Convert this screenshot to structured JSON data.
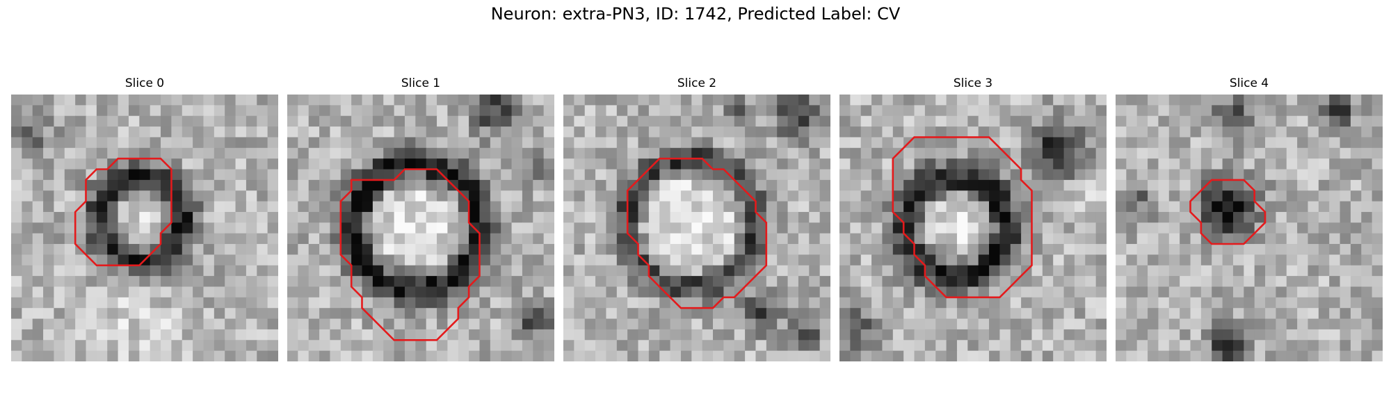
{
  "figure": {
    "title": "Neuron: extra-PN3, ID: 1742, Predicted Label: CV"
  },
  "colors": {
    "contour": "#e41a1c",
    "colormap": "gray"
  },
  "panels": [
    {
      "title": "Slice 0",
      "seed": 11,
      "ring": {
        "cx": 12.2,
        "cy": 11.6,
        "r": 3.8,
        "width": 1.6,
        "strength": 0.55,
        "inner_brightness": 0.12
      },
      "blobs": [
        {
          "cx": 2,
          "cy": 4,
          "r": 2.0,
          "s": -0.25
        },
        {
          "cx": 21.5,
          "cy": 27.5,
          "r": 1.8,
          "s": -0.45
        },
        {
          "cx": 12,
          "cy": 21,
          "r": 4.0,
          "s": 0.12
        }
      ],
      "contour_label": "cell-mask",
      "contour": [
        [
          11,
          6
        ],
        [
          14,
          6
        ],
        [
          15,
          7
        ],
        [
          15,
          12
        ],
        [
          14,
          13
        ],
        [
          14,
          14
        ],
        [
          13,
          15
        ],
        [
          12,
          16
        ],
        [
          8,
          16
        ],
        [
          7,
          15
        ],
        [
          6,
          14
        ],
        [
          6,
          11
        ],
        [
          7,
          10
        ],
        [
          7,
          8
        ],
        [
          8,
          7
        ],
        [
          9,
          7
        ],
        [
          10,
          6
        ]
      ]
    },
    {
      "title": "Slice 1",
      "seed": 23,
      "ring": {
        "cx": 12.1,
        "cy": 12.4,
        "r": 5.8,
        "width": 1.7,
        "strength": 0.6,
        "inner_brightness": 0.18
      },
      "blobs": [
        {
          "cx": 19.5,
          "cy": 1.5,
          "r": 2.2,
          "s": -0.45
        },
        {
          "cx": 23,
          "cy": 21,
          "r": 1.6,
          "s": -0.5
        },
        {
          "cx": 23,
          "cy": 7,
          "r": 1.5,
          "s": -0.25
        }
      ],
      "contour_label": "cell-mask",
      "contour": [
        [
          11,
          7
        ],
        [
          13,
          7
        ],
        [
          14,
          7
        ],
        [
          15,
          8
        ],
        [
          16,
          9
        ],
        [
          17,
          10
        ],
        [
          17,
          12
        ],
        [
          18,
          13
        ],
        [
          18,
          17
        ],
        [
          17,
          18
        ],
        [
          17,
          19
        ],
        [
          16,
          20
        ],
        [
          16,
          21
        ],
        [
          15,
          22
        ],
        [
          14,
          23
        ],
        [
          11,
          23
        ],
        [
          10,
          23
        ],
        [
          9,
          22
        ],
        [
          8,
          21
        ],
        [
          7,
          20
        ],
        [
          7,
          19
        ],
        [
          6,
          18
        ],
        [
          6,
          16
        ],
        [
          5,
          15
        ],
        [
          5,
          10
        ],
        [
          6,
          9
        ],
        [
          6,
          8
        ],
        [
          7,
          8
        ],
        [
          10,
          8
        ]
      ]
    },
    {
      "title": "Slice 2",
      "seed": 37,
      "ring": {
        "cx": 12.0,
        "cy": 12.0,
        "r": 5.9,
        "width": 1.5,
        "strength": 0.45,
        "inner_brightness": 0.16
      },
      "blobs": [
        {
          "cx": 22,
          "cy": 2,
          "r": 2.2,
          "s": -0.5
        },
        {
          "cx": 18.5,
          "cy": 20.5,
          "r": 1.6,
          "s": -0.55
        },
        {
          "cx": 22.5,
          "cy": 22.5,
          "r": 1.5,
          "s": -0.4
        },
        {
          "cx": 16,
          "cy": 1,
          "r": 1.4,
          "s": -0.3
        }
      ],
      "contour_label": "cell-mask",
      "contour": [
        [
          9,
          6
        ],
        [
          13,
          6
        ],
        [
          14,
          7
        ],
        [
          15,
          7
        ],
        [
          16,
          8
        ],
        [
          17,
          9
        ],
        [
          18,
          10
        ],
        [
          18,
          11
        ],
        [
          19,
          12
        ],
        [
          19,
          16
        ],
        [
          18,
          17
        ],
        [
          17,
          18
        ],
        [
          16,
          19
        ],
        [
          15,
          19
        ],
        [
          14,
          20
        ],
        [
          11,
          20
        ],
        [
          10,
          19
        ],
        [
          9,
          18
        ],
        [
          8,
          17
        ],
        [
          8,
          16
        ],
        [
          7,
          15
        ],
        [
          7,
          14
        ],
        [
          6,
          13
        ],
        [
          6,
          9
        ],
        [
          7,
          8
        ],
        [
          8,
          7
        ]
      ]
    },
    {
      "title": "Slice 3",
      "seed": 41,
      "ring": {
        "cx": 10.9,
        "cy": 12.4,
        "r": 4.6,
        "width": 1.8,
        "strength": 0.55,
        "inner_brightness": 0.16
      },
      "blobs": [
        {
          "cx": 20.5,
          "cy": 5,
          "r": 2.6,
          "s": -0.55
        },
        {
          "cx": 1.5,
          "cy": 22,
          "r": 2.2,
          "s": -0.35
        },
        {
          "cx": 23,
          "cy": 10,
          "r": 1.6,
          "s": 0.15
        }
      ],
      "contour_label": "cell-mask",
      "contour": [
        [
          8,
          4
        ],
        [
          14,
          4
        ],
        [
          15,
          5
        ],
        [
          16,
          6
        ],
        [
          17,
          7
        ],
        [
          17,
          8
        ],
        [
          18,
          9
        ],
        [
          18,
          16
        ],
        [
          17,
          17
        ],
        [
          16,
          18
        ],
        [
          15,
          19
        ],
        [
          10,
          19
        ],
        [
          9,
          18
        ],
        [
          8,
          17
        ],
        [
          8,
          16
        ],
        [
          7,
          15
        ],
        [
          7,
          14
        ],
        [
          6,
          13
        ],
        [
          6,
          12
        ],
        [
          5,
          11
        ],
        [
          5,
          6
        ],
        [
          6,
          5
        ],
        [
          7,
          4
        ]
      ]
    },
    {
      "title": "Slice 4",
      "seed": 53,
      "ring": {
        "cx": 10.4,
        "cy": 10.9,
        "r": 0.0,
        "width": 1.0,
        "strength": 0.0,
        "inner_brightness": 0.0
      },
      "blobs": [
        {
          "cx": 10.6,
          "cy": 10.6,
          "r": 2.6,
          "s": -0.7
        },
        {
          "cx": 11,
          "cy": 2,
          "r": 1.8,
          "s": -0.35
        },
        {
          "cx": 21,
          "cy": 1.5,
          "r": 1.6,
          "s": -0.45
        },
        {
          "cx": 10.5,
          "cy": 23.5,
          "r": 1.8,
          "s": -0.5
        },
        {
          "cx": 2,
          "cy": 10,
          "r": 1.6,
          "s": -0.3
        }
      ],
      "contour_label": "cell-mask",
      "contour": [
        [
          9,
          8
        ],
        [
          12,
          8
        ],
        [
          13,
          9
        ],
        [
          13,
          10
        ],
        [
          14,
          11
        ],
        [
          14,
          12
        ],
        [
          13,
          13
        ],
        [
          12,
          14
        ],
        [
          9,
          14
        ],
        [
          8,
          13
        ],
        [
          8,
          12
        ],
        [
          7,
          11
        ],
        [
          7,
          10
        ],
        [
          8,
          9
        ]
      ]
    }
  ]
}
